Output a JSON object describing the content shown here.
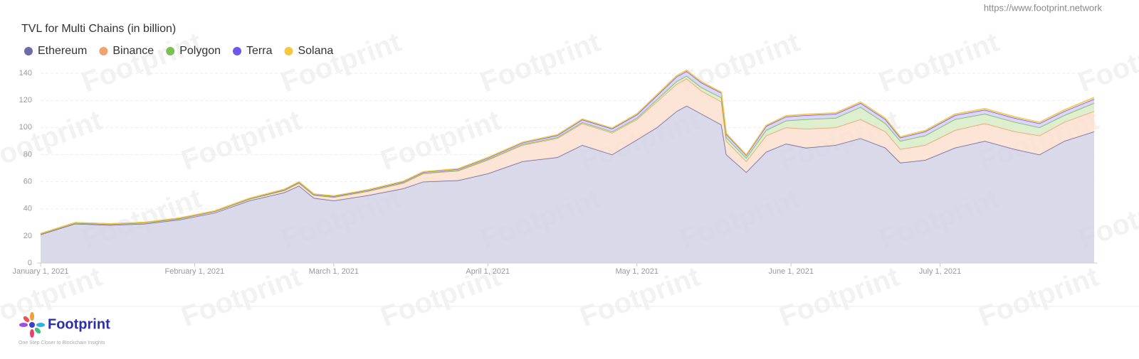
{
  "url": "https://www.footprint.network",
  "watermark": "Footprint",
  "footer": {
    "brand": "Footprint",
    "tagline": "One Step Closer to Blockchain Insights"
  },
  "chart_data": {
    "type": "stacked-area",
    "title": "TVL for Multi Chains (in billion)",
    "x": [
      "2021-01-01",
      "2021-01-08",
      "2021-01-15",
      "2021-01-22",
      "2021-01-29",
      "2021-02-05",
      "2021-02-12",
      "2021-02-19",
      "2021-02-22",
      "2021-02-25",
      "2021-03-01",
      "2021-03-08",
      "2021-03-15",
      "2021-03-19",
      "2021-03-26",
      "2021-04-01",
      "2021-04-08",
      "2021-04-15",
      "2021-04-20",
      "2021-04-26",
      "2021-05-01",
      "2021-05-05",
      "2021-05-09",
      "2021-05-11",
      "2021-05-14",
      "2021-05-18",
      "2021-05-19",
      "2021-05-23",
      "2021-05-27",
      "2021-05-31",
      "2021-06-04",
      "2021-06-10",
      "2021-06-15",
      "2021-06-20",
      "2021-06-23",
      "2021-06-28",
      "2021-07-04",
      "2021-07-10",
      "2021-07-16",
      "2021-07-21",
      "2021-07-26",
      "2021-08-01"
    ],
    "series": [
      {
        "name": "Ethereum",
        "color": "#6f6ba8",
        "fill": "#d4d2e6",
        "values": [
          21,
          29,
          28,
          29,
          32,
          37,
          46,
          52,
          57,
          48,
          46,
          50,
          55,
          60,
          61,
          66,
          75,
          78,
          87,
          80,
          91,
          100,
          112,
          116,
          110,
          102,
          80,
          67,
          82,
          88,
          85,
          87,
          92,
          85,
          74,
          76,
          85,
          90,
          84,
          80,
          90,
          97
        ]
      },
      {
        "name": "Binance",
        "color": "#f2a26e",
        "fill": "#fbe0cf",
        "values": [
          0.4,
          0.5,
          0.6,
          0.7,
          0.8,
          1,
          1.2,
          1.5,
          2,
          2,
          2.5,
          3,
          4,
          6,
          7,
          10,
          12,
          14,
          16,
          16,
          15,
          19,
          20,
          20,
          17,
          17,
          10,
          8,
          12,
          12,
          14,
          13,
          14,
          12,
          10,
          11,
          13,
          13,
          13,
          14,
          14,
          15
        ]
      },
      {
        "name": "Polygon",
        "color": "#7cbf57",
        "fill": "#d8ecc8",
        "values": [
          0,
          0,
          0,
          0,
          0,
          0,
          0,
          0.1,
          0.1,
          0.1,
          0.2,
          0.2,
          0.3,
          0.3,
          0.4,
          0.5,
          0.6,
          0.7,
          0.8,
          0.9,
          1,
          1.5,
          2,
          2,
          2.5,
          3,
          2.5,
          2.5,
          4,
          5,
          7,
          7,
          9,
          6,
          6,
          7,
          8,
          7,
          7,
          6,
          5,
          6
        ]
      },
      {
        "name": "Terra",
        "color": "#6f57e8",
        "fill": "#d6cff8",
        "values": [
          0.3,
          0.3,
          0.3,
          0.3,
          0.3,
          0.3,
          0.4,
          0.5,
          0.6,
          0.6,
          0.6,
          0.7,
          0.8,
          0.8,
          0.9,
          1,
          1.2,
          1.5,
          2,
          2.2,
          2.5,
          3,
          3.5,
          3.5,
          3.5,
          3.5,
          2.5,
          2,
          3,
          3,
          3,
          3,
          3,
          3,
          2.5,
          3,
          3,
          3,
          3,
          3,
          3,
          3
        ]
      },
      {
        "name": "Solana",
        "color": "#f5c842",
        "fill": "#fcefc4",
        "values": [
          0.1,
          0.1,
          0.1,
          0.1,
          0.2,
          0.2,
          0.2,
          0.3,
          0.3,
          0.3,
          0.3,
          0.3,
          0.3,
          0.3,
          0.3,
          0.4,
          0.4,
          0.5,
          0.5,
          0.5,
          0.6,
          0.7,
          0.8,
          0.8,
          0.7,
          0.6,
          0.5,
          0.4,
          0.6,
          0.7,
          0.8,
          0.8,
          0.9,
          0.8,
          0.7,
          0.8,
          0.9,
          1,
          0.9,
          0.9,
          1,
          1.2
        ]
      }
    ],
    "xlim": [
      "2021-01-01",
      "2021-08-01"
    ],
    "xticks": [
      {
        "value": "2021-01-01",
        "label": "January 1, 2021"
      },
      {
        "value": "2021-02-01",
        "label": "February 1, 2021"
      },
      {
        "value": "2021-03-01",
        "label": "March 1, 2021"
      },
      {
        "value": "2021-04-01",
        "label": "April 1, 2021"
      },
      {
        "value": "2021-05-01",
        "label": "May 1, 2021"
      },
      {
        "value": "2021-06-01",
        "label": "June 1, 2021"
      },
      {
        "value": "2021-07-01",
        "label": "July 1, 2021"
      }
    ],
    "ylim": [
      0,
      150
    ],
    "yticks": [
      0,
      20,
      40,
      60,
      80,
      100,
      120,
      140
    ],
    "grid": true
  }
}
